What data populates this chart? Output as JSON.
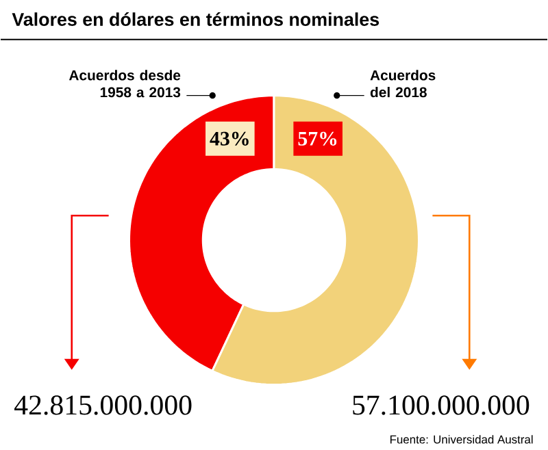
{
  "chart_data": {
    "type": "donut",
    "title": "Valores en dólares en términos nominales",
    "categories": [
      "Acuerdos desde 1958 a 2013",
      "Acuerdos del 2018"
    ],
    "values": [
      43,
      57
    ],
    "value_labels": [
      "43%",
      "57%"
    ],
    "colors": [
      "#f50000",
      "#f2d27a"
    ],
    "annotations": [
      "42.815.000.000",
      "57.100.000.000",
      "Fuente: Universidad Austral"
    ]
  }
}
